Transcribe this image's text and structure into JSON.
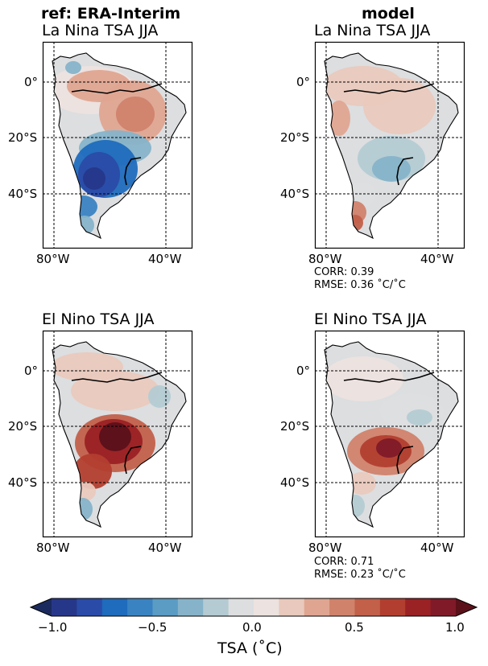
{
  "figure": {
    "column_headers": [
      "ref: ERA-Interim",
      "model"
    ],
    "panels": [
      {
        "title": "La Nina TSA JJA",
        "column": "ref",
        "pattern": "lanina_ref"
      },
      {
        "title": "La Nina TSA JJA",
        "column": "model",
        "pattern": "lanina_model",
        "corr": "CORR: 0.39",
        "rmse": "RMSE: 0.36 ˚C/˚C"
      },
      {
        "title": "El Nino TSA JJA",
        "column": "ref",
        "pattern": "elnino_ref"
      },
      {
        "title": "El Nino TSA JJA",
        "column": "model",
        "pattern": "elnino_model",
        "corr": "CORR: 0.71",
        "rmse": "RMSE: 0.23 ˚C/˚C"
      }
    ],
    "lat_ticks": [
      "0°",
      "20°S",
      "40°S"
    ],
    "lon_ticks": [
      "80°W",
      "40°W"
    ],
    "colorbar": {
      "label": "TSA (˚C)",
      "ticks": [
        "−1.0",
        "−0.5",
        "0.0",
        "0.5",
        "1.0"
      ],
      "range": [
        -1.0,
        1.0
      ],
      "colors": [
        "#1b2a5e",
        "#26378a",
        "#2a4ba8",
        "#1f6bbd",
        "#3a83c2",
        "#5a9cc4",
        "#86b3c9",
        "#b4cbd3",
        "#dcdee0",
        "#ece2df",
        "#e9c9bd",
        "#dfa591",
        "#d0826b",
        "#c2604a",
        "#b23e2f",
        "#9a2124",
        "#801a28",
        "#5a1119"
      ]
    }
  }
}
